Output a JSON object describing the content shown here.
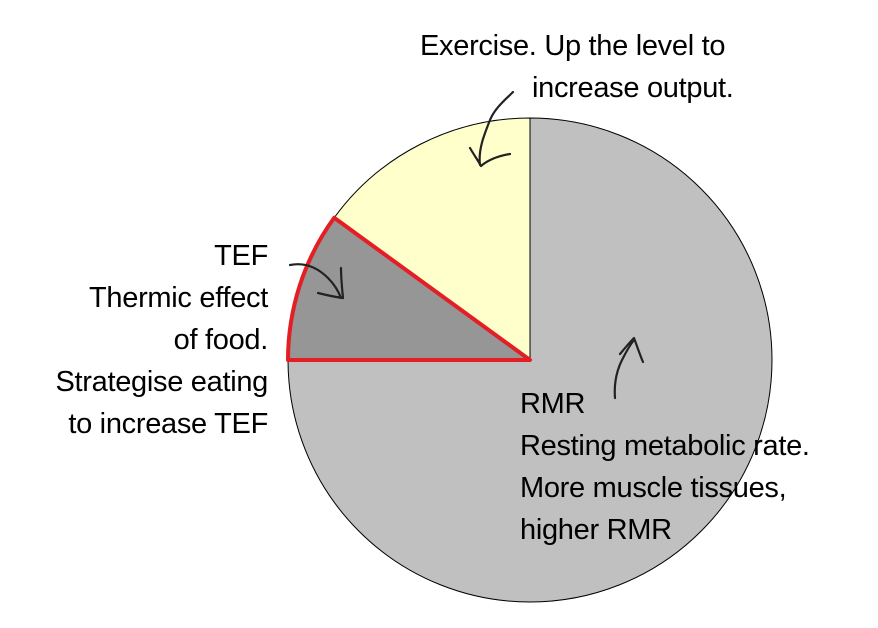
{
  "chart_data": {
    "type": "pie",
    "title": "",
    "start": "top",
    "direction": "clockwise",
    "slices": [
      {
        "key": "rmr",
        "value": 75,
        "color": "#c0c0c0",
        "highlight": false,
        "annotation": [
          "RMR",
          "Resting metabolic rate.",
          "More muscle tissues,",
          "higher RMR"
        ]
      },
      {
        "key": "tef",
        "value": 10,
        "color": "#969696",
        "highlight": true,
        "highlight_color": "#e31e24",
        "annotation": [
          "TEF",
          "Thermic effect",
          "of food.",
          "Strategise eating",
          "to increase TEF"
        ]
      },
      {
        "key": "exercise",
        "value": 15,
        "color": "#ffffcc",
        "highlight": false,
        "annotation": [
          "Exercise. Up the level to",
          "increase output."
        ]
      }
    ],
    "legend": "none",
    "annotation_icons": [
      "hand-drawn-arrow-up",
      "hand-drawn-arrow-down",
      "hand-drawn-arrow-down"
    ]
  }
}
